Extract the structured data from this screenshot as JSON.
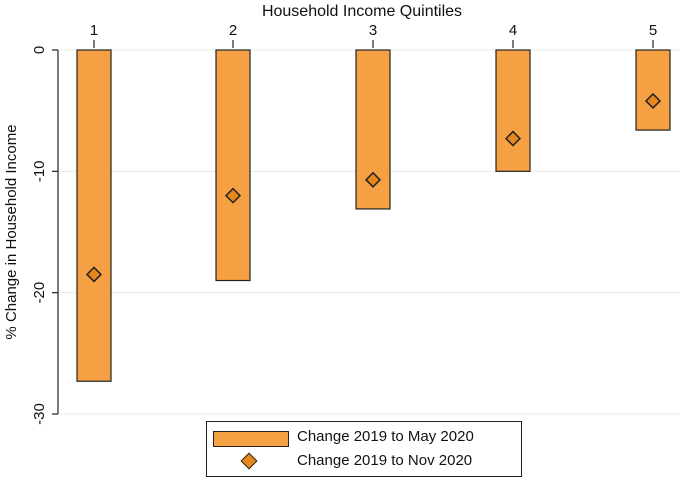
{
  "chart_data": {
    "type": "bar",
    "xlabel": "Household Income Quintiles",
    "ylabel": "% Change in Household Income",
    "categories": [
      "1",
      "2",
      "3",
      "4",
      "5"
    ],
    "ylim": [
      -30,
      0
    ],
    "yticks": [
      "0",
      "-10",
      "-20",
      "-30"
    ],
    "ytick_values": [
      0,
      -10,
      -20,
      -30
    ],
    "x_axis_position": "top",
    "grid": true,
    "legend_placement": "bottom-center",
    "series": [
      {
        "name": "Change 2019 to May 2020",
        "type": "bar",
        "values": [
          -27.3,
          -19.0,
          -13.1,
          -10.0,
          -6.6
        ],
        "color": "#f5a042"
      },
      {
        "name": "Change 2019 to Nov 2020",
        "type": "scatter",
        "marker": "diamond",
        "values": [
          -18.5,
          -12.0,
          -10.7,
          -7.3,
          -4.2
        ],
        "color": "#e8861e"
      }
    ]
  }
}
